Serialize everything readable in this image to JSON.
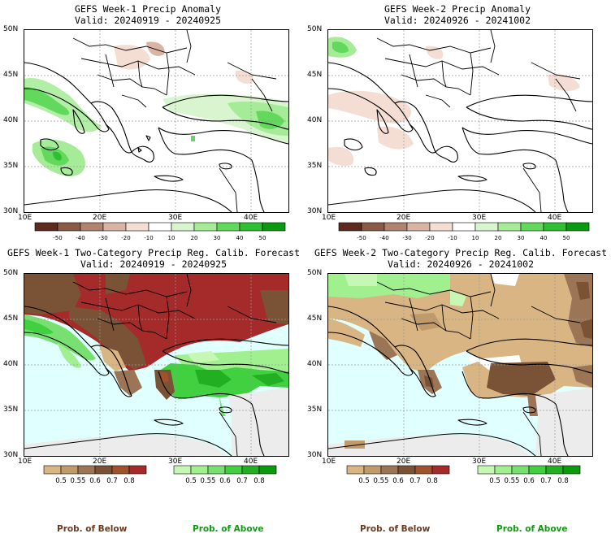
{
  "panels": [
    {
      "id": "p1",
      "title": "GEFS Week-1 Precip Anomaly",
      "valid": "Valid: 20240919 - 20240925",
      "kind": "anomaly"
    },
    {
      "id": "p2",
      "title": "GEFS Week-2 Precip Anomaly",
      "valid": "Valid: 20240926 - 20241002",
      "kind": "anomaly"
    },
    {
      "id": "p3",
      "title": "GEFS Week-1 Two-Category Precip Reg. Calib. Forecast",
      "valid": "Valid: 20240919 - 20240925",
      "kind": "prob"
    },
    {
      "id": "p4",
      "title": "GEFS Week-2 Two-Category Precip Reg. Calib. Forecast",
      "valid": "Valid: 20240926 - 20241002",
      "kind": "prob"
    }
  ],
  "axes": {
    "lat_labels": [
      "50N",
      "45N",
      "40N",
      "35N",
      "30N"
    ],
    "lon_labels": [
      "10E",
      "20E",
      "30E",
      "40E"
    ]
  },
  "anomaly_colorbar": {
    "labels": [
      "-50",
      "-40",
      "-30",
      "-20",
      "-10",
      "10",
      "20",
      "30",
      "40",
      "50"
    ],
    "colors": [
      "#5e2a1e",
      "#8a5a46",
      "#b08270",
      "#d9b3a3",
      "#f4ddd2",
      "#ffffff",
      "#d9f5cf",
      "#a6eb98",
      "#62d95c",
      "#2fbf32",
      "#0a9a12"
    ]
  },
  "prob_below_colorbar": {
    "labels": [
      "0.5",
      "0.55",
      "0.6",
      "0.7",
      "0.8"
    ],
    "colors": [
      "#d8b582",
      "#c09a6a",
      "#9b7556",
      "#7a5235",
      "#a0522d",
      "#a52a2a"
    ]
  },
  "prob_above_colorbar": {
    "labels": [
      "0.5",
      "0.55",
      "0.6",
      "0.7",
      "0.8"
    ],
    "colors": [
      "#c6f7b5",
      "#a0f090",
      "#78e070",
      "#40d040",
      "#22b022",
      "#0a9a0a"
    ]
  },
  "legend": {
    "below_label": "Prob. of Below",
    "above_label": "Prob. of Above",
    "below_color": "#6b3a1f",
    "above_color": "#129a12"
  },
  "colors": {
    "sea_prob": "#e0ffff",
    "dry_region": "#ececec",
    "land_white": "#ffffff"
  }
}
